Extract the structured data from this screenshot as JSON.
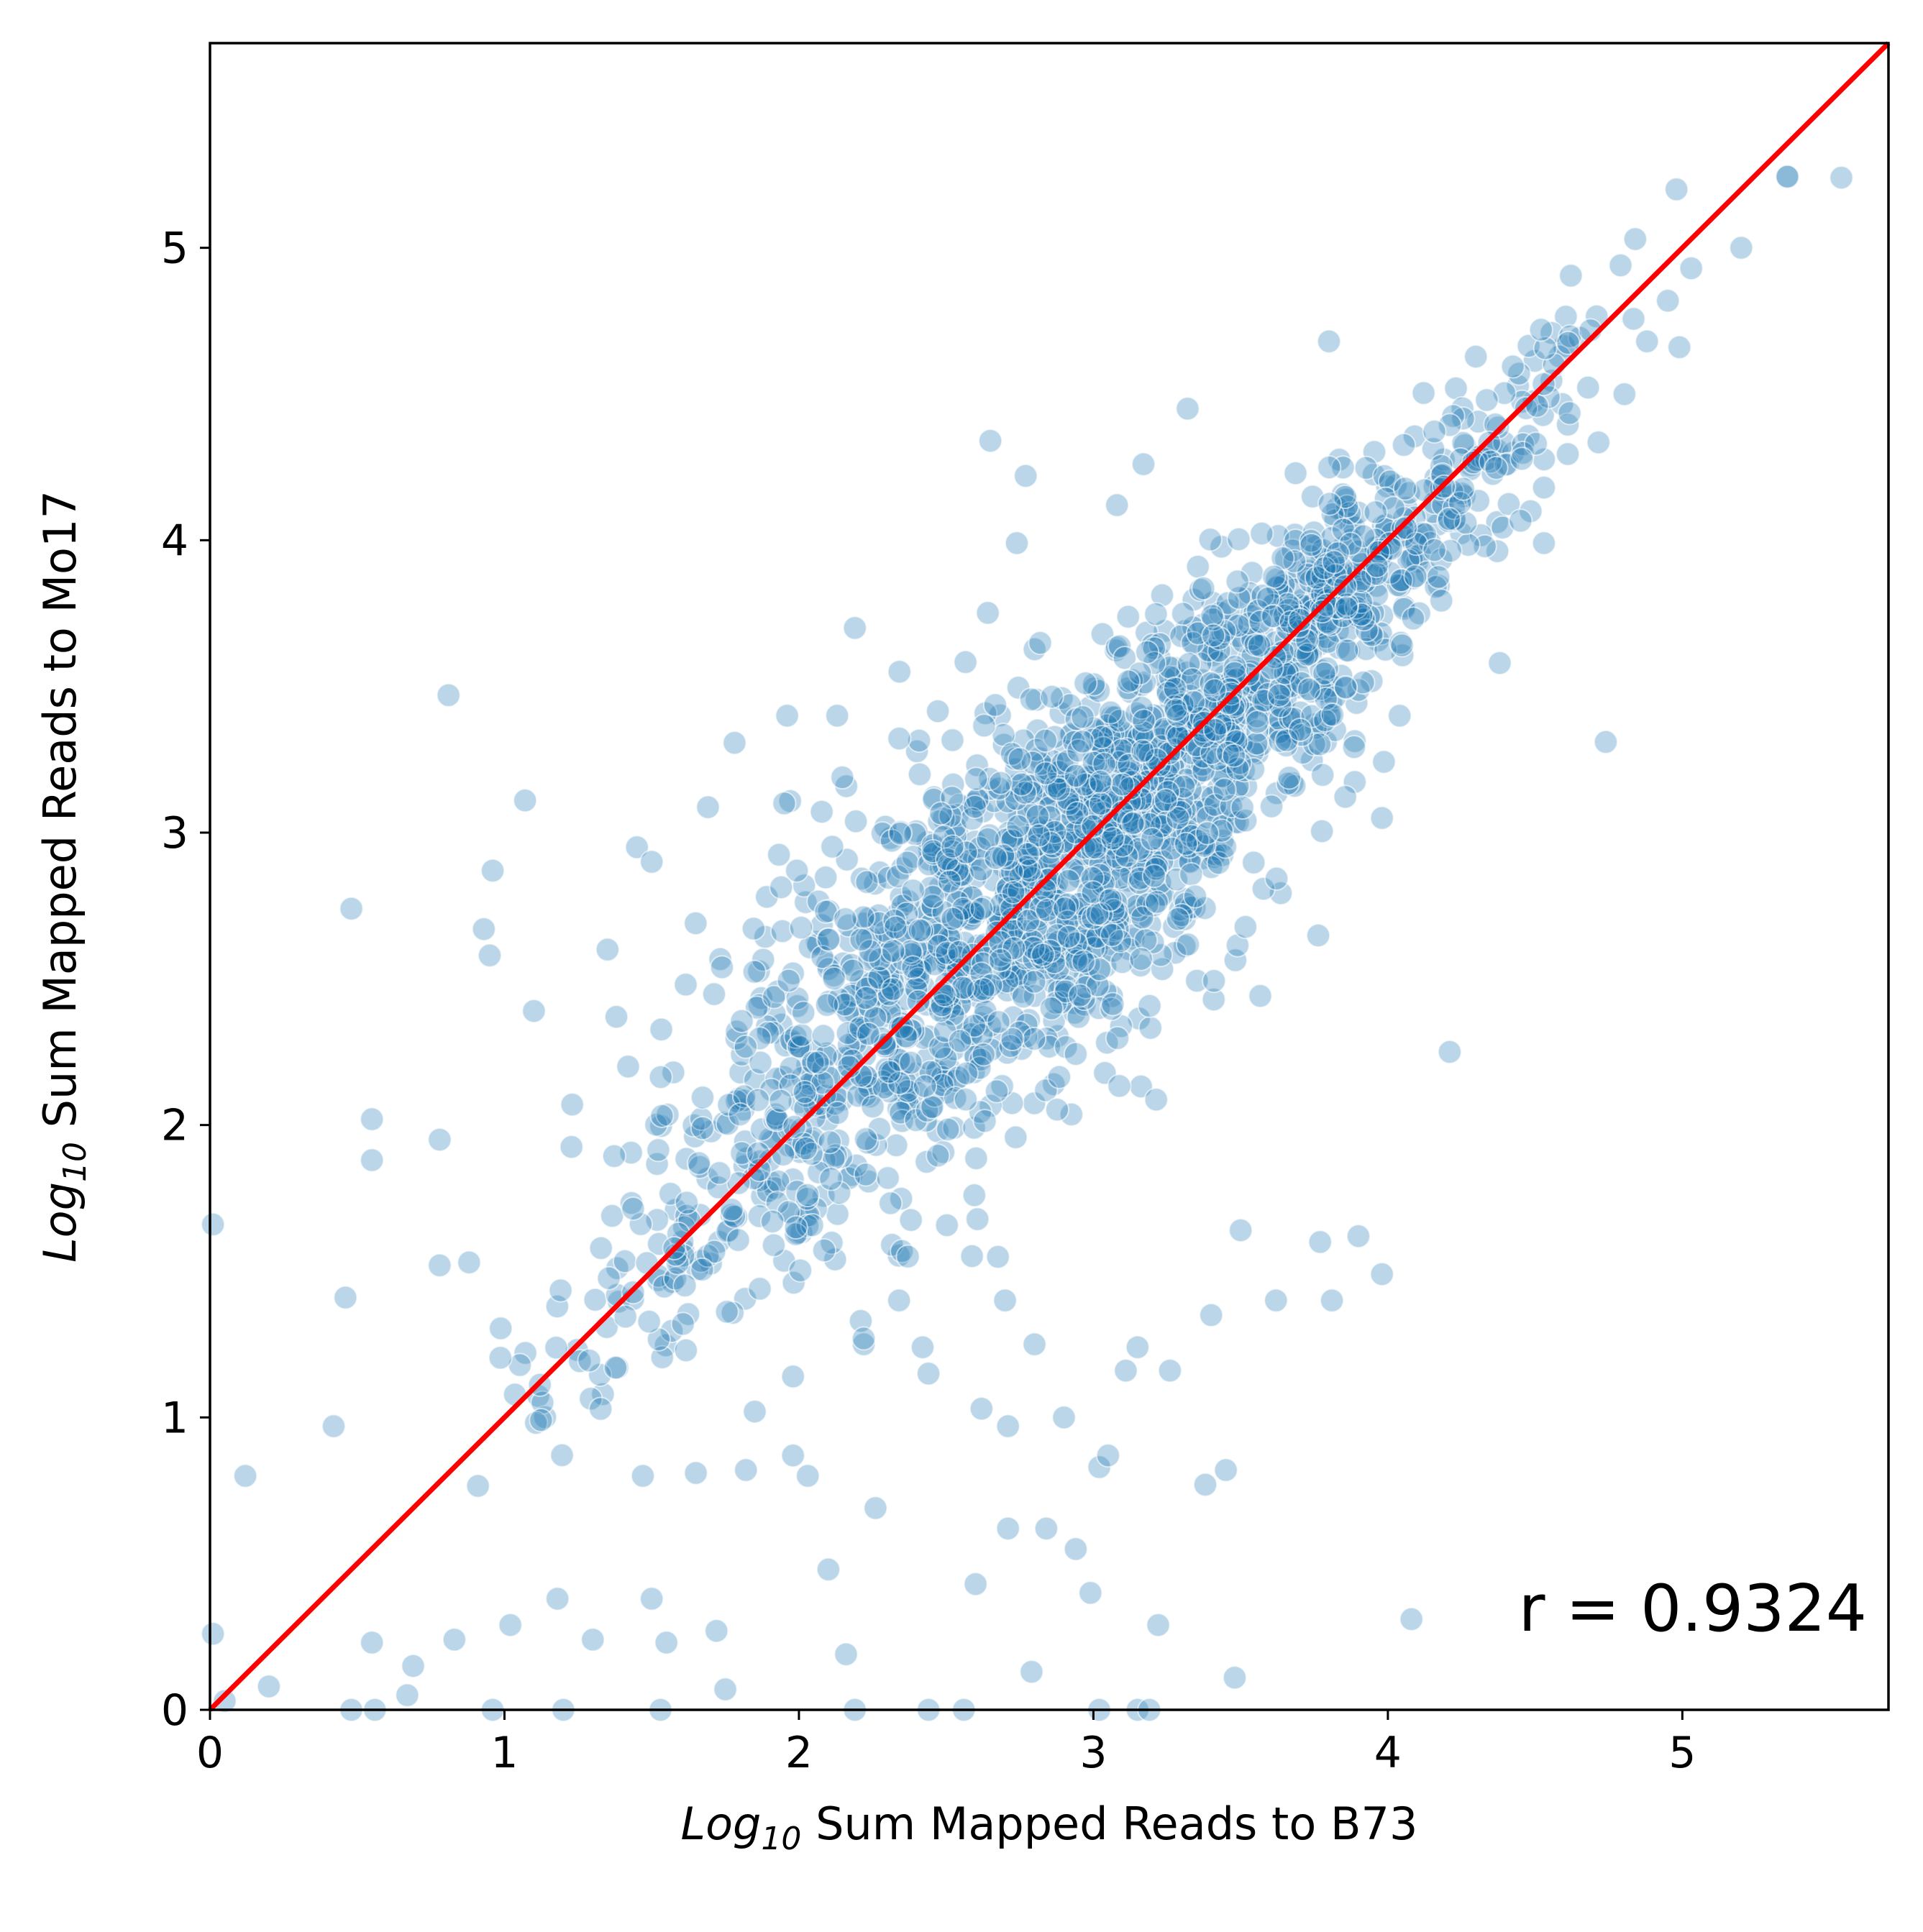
{
  "chart_data": {
    "type": "scatter",
    "title": "",
    "xlabel": {
      "prefix": "Log",
      "sub": "10",
      "rest": " Sum Mapped Reads to B73"
    },
    "ylabel": {
      "prefix": "Log",
      "sub": "10",
      "rest": " Sum Mapped Reads to Mo17"
    },
    "xlim": [
      0,
      5.7
    ],
    "ylim": [
      0,
      5.7
    ],
    "xticks": [
      0,
      1,
      2,
      3,
      4,
      5
    ],
    "yticks": [
      0,
      1,
      2,
      3,
      4,
      5
    ],
    "xtick_labels": [
      "0",
      "1",
      "2",
      "3",
      "4",
      "5"
    ],
    "ytick_labels": [
      "0",
      "1",
      "2",
      "3",
      "4",
      "5"
    ],
    "grid": false,
    "annotation": "r = 0.9324",
    "fit_line": {
      "x": [
        0,
        5.7
      ],
      "y": [
        0,
        5.7
      ],
      "color": "#ff0000"
    },
    "point_color": "#1f77b4",
    "points": {
      "description_of_generation": "",
      "outliers": [
        [
          0.81,
          3.47
        ],
        [
          1.07,
          3.11
        ],
        [
          0.96,
          2.87
        ],
        [
          0.48,
          2.74
        ],
        [
          0.93,
          2.67
        ],
        [
          0.95,
          2.58
        ],
        [
          1.1,
          2.39
        ],
        [
          0.55,
          2.02
        ],
        [
          0.55,
          1.88
        ],
        [
          0.78,
          1.95
        ],
        [
          0.88,
          1.53
        ],
        [
          0.78,
          1.52
        ],
        [
          0.46,
          1.41
        ],
        [
          0.42,
          0.97
        ],
        [
          0.12,
          0.8
        ],
        [
          0.01,
          1.66
        ],
        [
          0.01,
          0.26
        ],
        [
          0.05,
          0.03
        ],
        [
          0.2,
          0.08
        ],
        [
          0.48,
          0.0
        ],
        [
          0.56,
          0.0
        ],
        [
          0.67,
          0.05
        ],
        [
          0.69,
          0.15
        ],
        [
          0.55,
          0.23
        ],
        [
          0.83,
          0.24
        ],
        [
          1.02,
          0.29
        ],
        [
          0.96,
          0.0
        ],
        [
          1.18,
          0.38
        ],
        [
          1.2,
          0.0
        ],
        [
          1.3,
          0.24
        ],
        [
          1.45,
          2.95
        ],
        [
          1.5,
          2.9
        ],
        [
          1.35,
          2.6
        ],
        [
          1.38,
          2.37
        ],
        [
          1.42,
          2.2
        ],
        [
          1.23,
          2.07
        ],
        [
          1.47,
          0.8
        ],
        [
          1.5,
          0.38
        ],
        [
          1.55,
          0.23
        ],
        [
          1.72,
          0.27
        ],
        [
          1.75,
          0.07
        ],
        [
          1.53,
          0.0
        ],
        [
          1.65,
          0.81
        ],
        [
          1.82,
          0.82
        ],
        [
          1.85,
          1.02
        ],
        [
          1.98,
          0.87
        ],
        [
          2.03,
          0.8
        ],
        [
          1.98,
          1.14
        ],
        [
          2.1,
          0.48
        ],
        [
          2.16,
          0.19
        ],
        [
          2.26,
          0.69
        ],
        [
          2.19,
          0.0
        ],
        [
          2.44,
          0.0
        ],
        [
          2.56,
          0.0
        ],
        [
          2.6,
          0.43
        ],
        [
          2.71,
          0.62
        ],
        [
          2.79,
          0.13
        ],
        [
          2.84,
          0.62
        ],
        [
          2.94,
          0.55
        ],
        [
          2.99,
          0.4
        ],
        [
          3.02,
          0.83
        ],
        [
          3.05,
          0.87
        ],
        [
          3.02,
          0.0
        ],
        [
          3.15,
          0.0
        ],
        [
          3.19,
          0.0
        ],
        [
          3.22,
          0.29
        ],
        [
          3.38,
          0.77
        ],
        [
          3.45,
          0.82
        ],
        [
          3.48,
          0.11
        ],
        [
          4.08,
          0.31
        ],
        [
          2.65,
          4.34
        ],
        [
          2.77,
          4.22
        ],
        [
          2.74,
          3.99
        ],
        [
          3.17,
          4.26
        ],
        [
          3.08,
          4.12
        ],
        [
          3.32,
          4.45
        ],
        [
          3.8,
          4.68
        ],
        [
          2.19,
          3.7
        ],
        [
          1.96,
          3.4
        ],
        [
          2.13,
          3.4
        ],
        [
          1.95,
          3.1
        ],
        [
          4.74,
          3.31
        ],
        [
          4.38,
          3.58
        ],
        [
          3.98,
          3.05
        ],
        [
          4.21,
          2.25
        ],
        [
          4.04,
          3.4
        ],
        [
          4.52,
          4.72
        ],
        [
          4.53,
          3.99
        ],
        [
          4.53,
          4.18
        ],
        [
          4.88,
          4.68
        ],
        [
          4.99,
          4.66
        ],
        [
          5.03,
          4.93
        ],
        [
          5.2,
          5.0
        ],
        [
          5.54,
          5.24
        ],
        [
          4.84,
          5.03
        ],
        [
          4.98,
          5.2
        ],
        [
          3.62,
          1.4
        ],
        [
          3.9,
          1.62
        ],
        [
          3.98,
          1.49
        ],
        [
          3.81,
          1.4
        ],
        [
          3.77,
          1.6
        ],
        [
          3.5,
          1.64
        ],
        [
          3.4,
          1.35
        ],
        [
          3.26,
          1.16
        ],
        [
          3.15,
          1.24
        ],
        [
          3.11,
          1.16
        ],
        [
          2.8,
          1.25
        ],
        [
          2.7,
          1.4
        ],
        [
          2.9,
          1.0
        ],
        [
          2.71,
          0.97
        ],
        [
          2.62,
          1.03
        ],
        [
          2.42,
          1.24
        ],
        [
          2.44,
          1.15
        ],
        [
          2.21,
          1.33
        ],
        [
          2.22,
          1.25
        ],
        [
          2.22,
          1.27
        ],
        [
          1.99,
          1.65
        ],
        [
          1.91,
          1.67
        ],
        [
          2.34,
          1.4
        ],
        [
          2.37,
          1.55
        ]
      ]
    },
    "description": ""
  }
}
